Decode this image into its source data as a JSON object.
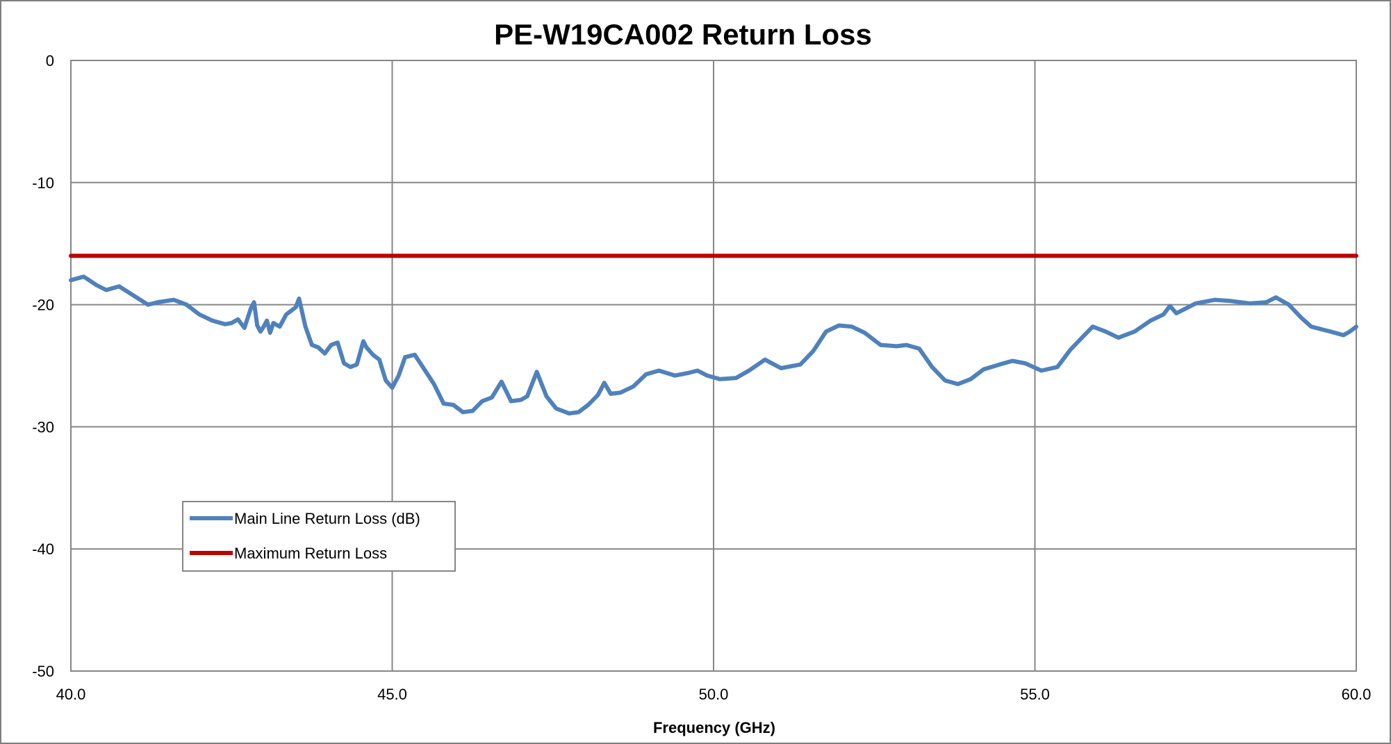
{
  "chart_data": {
    "type": "line",
    "title": "PE-W19CA002 Return Loss",
    "xlabel": "Frequency (GHz)",
    "ylabel": "",
    "xlim": [
      40,
      60
    ],
    "ylim": [
      -50,
      0
    ],
    "x_ticks": [
      "40.0",
      "45.0",
      "50.0",
      "55.0",
      "60.0"
    ],
    "y_ticks": [
      "0",
      "-10",
      "-20",
      "-30",
      "-40",
      "-50"
    ],
    "grid": true,
    "legend_position": "lower-left",
    "series": [
      {
        "name": "Main Line Return Loss (dB)",
        "color": "#4f81bd",
        "points": [
          [
            40.0,
            -18.0
          ],
          [
            40.2,
            -17.7
          ],
          [
            40.4,
            -18.4
          ],
          [
            40.55,
            -18.8
          ],
          [
            40.75,
            -18.5
          ],
          [
            40.9,
            -19.0
          ],
          [
            41.05,
            -19.5
          ],
          [
            41.2,
            -20.0
          ],
          [
            41.35,
            -19.8
          ],
          [
            41.6,
            -19.6
          ],
          [
            41.8,
            -20.0
          ],
          [
            42.0,
            -20.8
          ],
          [
            42.2,
            -21.3
          ],
          [
            42.4,
            -21.6
          ],
          [
            42.5,
            -21.5
          ],
          [
            42.6,
            -21.2
          ],
          [
            42.7,
            -21.9
          ],
          [
            42.8,
            -20.3
          ],
          [
            42.85,
            -19.8
          ],
          [
            42.9,
            -21.7
          ],
          [
            42.95,
            -22.2
          ],
          [
            43.0,
            -21.8
          ],
          [
            43.05,
            -21.3
          ],
          [
            43.1,
            -22.3
          ],
          [
            43.15,
            -21.5
          ],
          [
            43.25,
            -21.8
          ],
          [
            43.35,
            -20.8
          ],
          [
            43.5,
            -20.2
          ],
          [
            43.55,
            -19.5
          ],
          [
            43.65,
            -21.8
          ],
          [
            43.75,
            -23.3
          ],
          [
            43.85,
            -23.5
          ],
          [
            43.95,
            -24.0
          ],
          [
            44.05,
            -23.3
          ],
          [
            44.15,
            -23.1
          ],
          [
            44.25,
            -24.8
          ],
          [
            44.35,
            -25.1
          ],
          [
            44.45,
            -24.9
          ],
          [
            44.55,
            -23.0
          ],
          [
            44.6,
            -23.5
          ],
          [
            44.7,
            -24.1
          ],
          [
            44.8,
            -24.5
          ],
          [
            44.9,
            -26.2
          ],
          [
            45.0,
            -26.8
          ],
          [
            45.1,
            -25.8
          ],
          [
            45.2,
            -24.3
          ],
          [
            45.35,
            -24.1
          ],
          [
            45.5,
            -25.3
          ],
          [
            45.65,
            -26.5
          ],
          [
            45.8,
            -28.1
          ],
          [
            45.95,
            -28.2
          ],
          [
            46.1,
            -28.8
          ],
          [
            46.25,
            -28.7
          ],
          [
            46.4,
            -27.9
          ],
          [
            46.55,
            -27.6
          ],
          [
            46.7,
            -26.3
          ],
          [
            46.85,
            -27.9
          ],
          [
            47.0,
            -27.8
          ],
          [
            47.1,
            -27.5
          ],
          [
            47.25,
            -25.5
          ],
          [
            47.4,
            -27.5
          ],
          [
            47.55,
            -28.5
          ],
          [
            47.75,
            -28.9
          ],
          [
            47.9,
            -28.8
          ],
          [
            48.05,
            -28.2
          ],
          [
            48.2,
            -27.4
          ],
          [
            48.3,
            -26.4
          ],
          [
            48.4,
            -27.3
          ],
          [
            48.55,
            -27.2
          ],
          [
            48.75,
            -26.7
          ],
          [
            48.95,
            -25.7
          ],
          [
            49.15,
            -25.4
          ],
          [
            49.4,
            -25.8
          ],
          [
            49.6,
            -25.6
          ],
          [
            49.75,
            -25.4
          ],
          [
            49.9,
            -25.8
          ],
          [
            50.1,
            -26.1
          ],
          [
            50.35,
            -26.0
          ],
          [
            50.55,
            -25.4
          ],
          [
            50.8,
            -24.5
          ],
          [
            51.05,
            -25.2
          ],
          [
            51.35,
            -24.9
          ],
          [
            51.55,
            -23.8
          ],
          [
            51.75,
            -22.2
          ],
          [
            51.95,
            -21.7
          ],
          [
            52.15,
            -21.8
          ],
          [
            52.35,
            -22.3
          ],
          [
            52.6,
            -23.3
          ],
          [
            52.85,
            -23.4
          ],
          [
            53.0,
            -23.3
          ],
          [
            53.2,
            -23.6
          ],
          [
            53.4,
            -25.1
          ],
          [
            53.6,
            -26.2
          ],
          [
            53.8,
            -26.5
          ],
          [
            54.0,
            -26.1
          ],
          [
            54.2,
            -25.3
          ],
          [
            54.45,
            -24.9
          ],
          [
            54.65,
            -24.6
          ],
          [
            54.85,
            -24.8
          ],
          [
            55.1,
            -25.4
          ],
          [
            55.35,
            -25.1
          ],
          [
            55.55,
            -23.7
          ],
          [
            55.75,
            -22.6
          ],
          [
            55.9,
            -21.8
          ],
          [
            56.1,
            -22.2
          ],
          [
            56.3,
            -22.7
          ],
          [
            56.55,
            -22.2
          ],
          [
            56.8,
            -21.3
          ],
          [
            57.0,
            -20.8
          ],
          [
            57.1,
            -20.1
          ],
          [
            57.2,
            -20.7
          ],
          [
            57.35,
            -20.3
          ],
          [
            57.5,
            -19.9
          ],
          [
            57.8,
            -19.6
          ],
          [
            58.05,
            -19.7
          ],
          [
            58.35,
            -19.9
          ],
          [
            58.6,
            -19.8
          ],
          [
            58.75,
            -19.4
          ],
          [
            58.95,
            -20.0
          ],
          [
            59.15,
            -21.1
          ],
          [
            59.3,
            -21.8
          ],
          [
            59.45,
            -22.0
          ],
          [
            59.6,
            -22.2
          ],
          [
            59.8,
            -22.5
          ],
          [
            59.9,
            -22.2
          ],
          [
            60.0,
            -21.8
          ]
        ]
      },
      {
        "name": "Maximum Return Loss",
        "color": "#c00000",
        "points": [
          [
            40.0,
            -16.0
          ],
          [
            60.0,
            -16.0
          ]
        ]
      }
    ]
  }
}
